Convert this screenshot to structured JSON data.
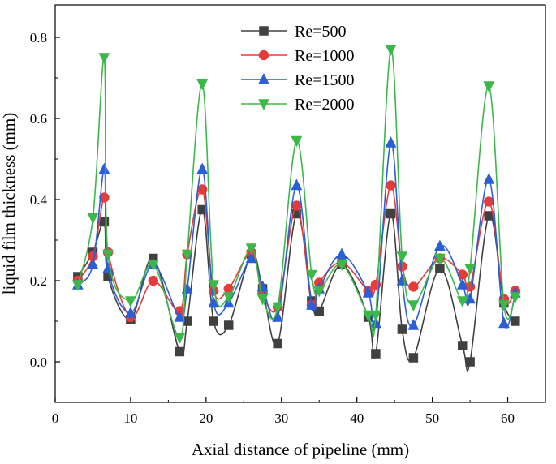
{
  "chart_data": {
    "type": "line",
    "xlabel": "Axial distance of pipeline (mm)",
    "ylabel": "liquid film thickness (mm)",
    "xlim": [
      0,
      65
    ],
    "ylim": [
      -0.1,
      0.88
    ],
    "xticks": [
      0,
      10,
      20,
      30,
      40,
      50,
      60
    ],
    "yticks": [
      0.0,
      0.2,
      0.4,
      0.6,
      0.8
    ],
    "xtick_labels": [
      "0",
      "10",
      "20",
      "30",
      "40",
      "50",
      "60"
    ],
    "ytick_labels": [
      "0.0",
      "0.2",
      "0.4",
      "0.6",
      "0.8"
    ],
    "legend_position": "top-center",
    "grid": false,
    "series": [
      {
        "name": "Re=500",
        "color": "#404040",
        "marker": "square",
        "x": [
          3,
          5,
          6.5,
          7,
          10,
          13,
          16.5,
          17.5,
          19.5,
          21,
          23,
          26,
          27.5,
          29.5,
          32,
          34,
          35,
          38,
          41.5,
          42.5,
          44.5,
          46,
          47.5,
          51,
          54,
          55,
          57.5,
          59.5,
          61
        ],
        "y": [
          0.21,
          0.27,
          0.345,
          0.21,
          0.105,
          0.255,
          0.025,
          0.1,
          0.375,
          0.1,
          0.09,
          0.265,
          0.18,
          0.045,
          0.365,
          0.15,
          0.125,
          0.24,
          0.11,
          0.02,
          0.365,
          0.08,
          0.01,
          0.23,
          0.04,
          0.0,
          0.36,
          0.145,
          0.1
        ]
      },
      {
        "name": "Re=1000",
        "color": "#e63b3b",
        "marker": "circle",
        "x": [
          3,
          5,
          6.5,
          7,
          10,
          13,
          16.5,
          17.5,
          19.5,
          21,
          23,
          26,
          27.5,
          29.5,
          32,
          34,
          35,
          38,
          41.5,
          42.5,
          44.5,
          46,
          47.5,
          51,
          54,
          55,
          57.5,
          59.5,
          61
        ],
        "y": [
          0.2,
          0.26,
          0.405,
          0.27,
          0.11,
          0.2,
          0.125,
          0.265,
          0.425,
          0.175,
          0.18,
          0.27,
          0.17,
          0.135,
          0.385,
          0.14,
          0.195,
          0.245,
          0.175,
          0.19,
          0.435,
          0.235,
          0.185,
          0.255,
          0.215,
          0.185,
          0.395,
          0.155,
          0.175
        ]
      },
      {
        "name": "Re=1500",
        "color": "#2a5fd6",
        "marker": "triangle-up",
        "x": [
          3,
          5,
          6.5,
          7,
          10,
          13,
          16.5,
          17.5,
          19.5,
          21,
          23,
          26,
          27.5,
          29.5,
          32,
          34,
          35,
          38,
          41.5,
          42.5,
          44.5,
          46,
          47.5,
          51,
          54,
          55,
          57.5,
          59.5,
          61
        ],
        "y": [
          0.19,
          0.24,
          0.475,
          0.23,
          0.12,
          0.24,
          0.11,
          0.18,
          0.475,
          0.145,
          0.145,
          0.255,
          0.185,
          0.11,
          0.435,
          0.14,
          0.18,
          0.265,
          0.17,
          0.095,
          0.54,
          0.2,
          0.09,
          0.285,
          0.19,
          0.155,
          0.45,
          0.095,
          0.17
        ]
      },
      {
        "name": "Re=2000",
        "color": "#3cb84a",
        "marker": "triangle-down",
        "x": [
          3,
          5,
          6.5,
          7,
          10,
          13,
          16.5,
          17.5,
          19.5,
          21,
          23,
          26,
          27.5,
          29.5,
          32,
          34,
          35,
          38,
          41.5,
          42.5,
          44.5,
          46,
          47.5,
          51,
          54,
          55,
          57.5,
          59.5,
          61
        ],
        "y": [
          0.19,
          0.355,
          0.75,
          0.265,
          0.15,
          0.24,
          0.06,
          0.265,
          0.685,
          0.19,
          0.16,
          0.28,
          0.155,
          0.135,
          0.545,
          0.215,
          0.175,
          0.24,
          0.115,
          0.115,
          0.77,
          0.26,
          0.14,
          0.255,
          0.15,
          0.23,
          0.68,
          0.14,
          0.16
        ]
      }
    ]
  }
}
